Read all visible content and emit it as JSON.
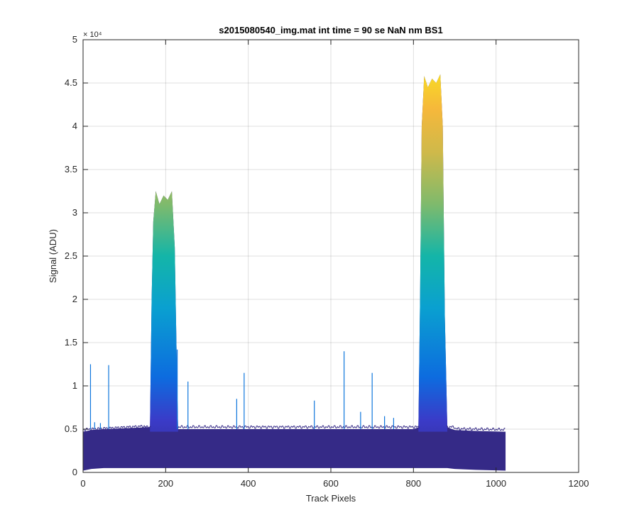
{
  "chart_data": {
    "type": "area",
    "title": "s2015080540_img.mat int time = 90 se  NaN nm BS1",
    "xlabel": "Track Pixels",
    "ylabel": "Signal (ADU)",
    "xlim": [
      0,
      1200
    ],
    "ylim": [
      0,
      50000
    ],
    "y_multiplier_label": "× 10⁴",
    "x_ticks": [
      0,
      200,
      400,
      600,
      800,
      1000,
      1200
    ],
    "x_tick_labels": [
      "0",
      "200",
      "400",
      "600",
      "800",
      "1000",
      "1200"
    ],
    "y_ticks": [
      0,
      5000,
      10000,
      15000,
      20000,
      25000,
      30000,
      35000,
      40000,
      45000,
      50000
    ],
    "y_tick_labels": [
      "0",
      "0.5",
      "1",
      "1.5",
      "2",
      "2.5",
      "3",
      "3.5",
      "4",
      "4.5",
      "5"
    ],
    "grid": true,
    "colormap": "parula (value-mapped: dark blue low → yellow high)",
    "colors": {
      "low": "#352a87",
      "mid_low": "#0d75dc",
      "mid": "#09adc2",
      "mid_high": "#7fba6c",
      "high": "#f9fb0e"
    },
    "series": [
      {
        "x": [
          0,
          20,
          50,
          100,
          150,
          162,
          166,
          170,
          176,
          185,
          195,
          205,
          215,
          222,
          226,
          230,
          240,
          300,
          400,
          500,
          600,
          700,
          780,
          800,
          812,
          816,
          820,
          826,
          835,
          845,
          855,
          865,
          871,
          876,
          882,
          900,
          950,
          1023
        ],
        "y": [
          4700,
          4900,
          5000,
          5100,
          5200,
          5250,
          20000,
          29000,
          32500,
          31000,
          32000,
          31500,
          32500,
          26000,
          15000,
          5000,
          5000,
          5000,
          5000,
          5000,
          5000,
          5000,
          5000,
          5000,
          5200,
          20000,
          40000,
          45800,
          44500,
          45500,
          45000,
          46000,
          40000,
          18000,
          5200,
          4900,
          4800,
          4700
        ]
      }
    ],
    "spikes": [
      {
        "x": 18,
        "y": 12500
      },
      {
        "x": 28,
        "y": 5800
      },
      {
        "x": 42,
        "y": 5700
      },
      {
        "x": 62,
        "y": 12400
      },
      {
        "x": 228,
        "y": 14200
      },
      {
        "x": 254,
        "y": 10500
      },
      {
        "x": 372,
        "y": 8500
      },
      {
        "x": 390,
        "y": 11500
      },
      {
        "x": 560,
        "y": 8300
      },
      {
        "x": 632,
        "y": 14000
      },
      {
        "x": 672,
        "y": 7000
      },
      {
        "x": 700,
        "y": 11500
      },
      {
        "x": 730,
        "y": 6500
      },
      {
        "x": 752,
        "y": 6300
      }
    ]
  }
}
